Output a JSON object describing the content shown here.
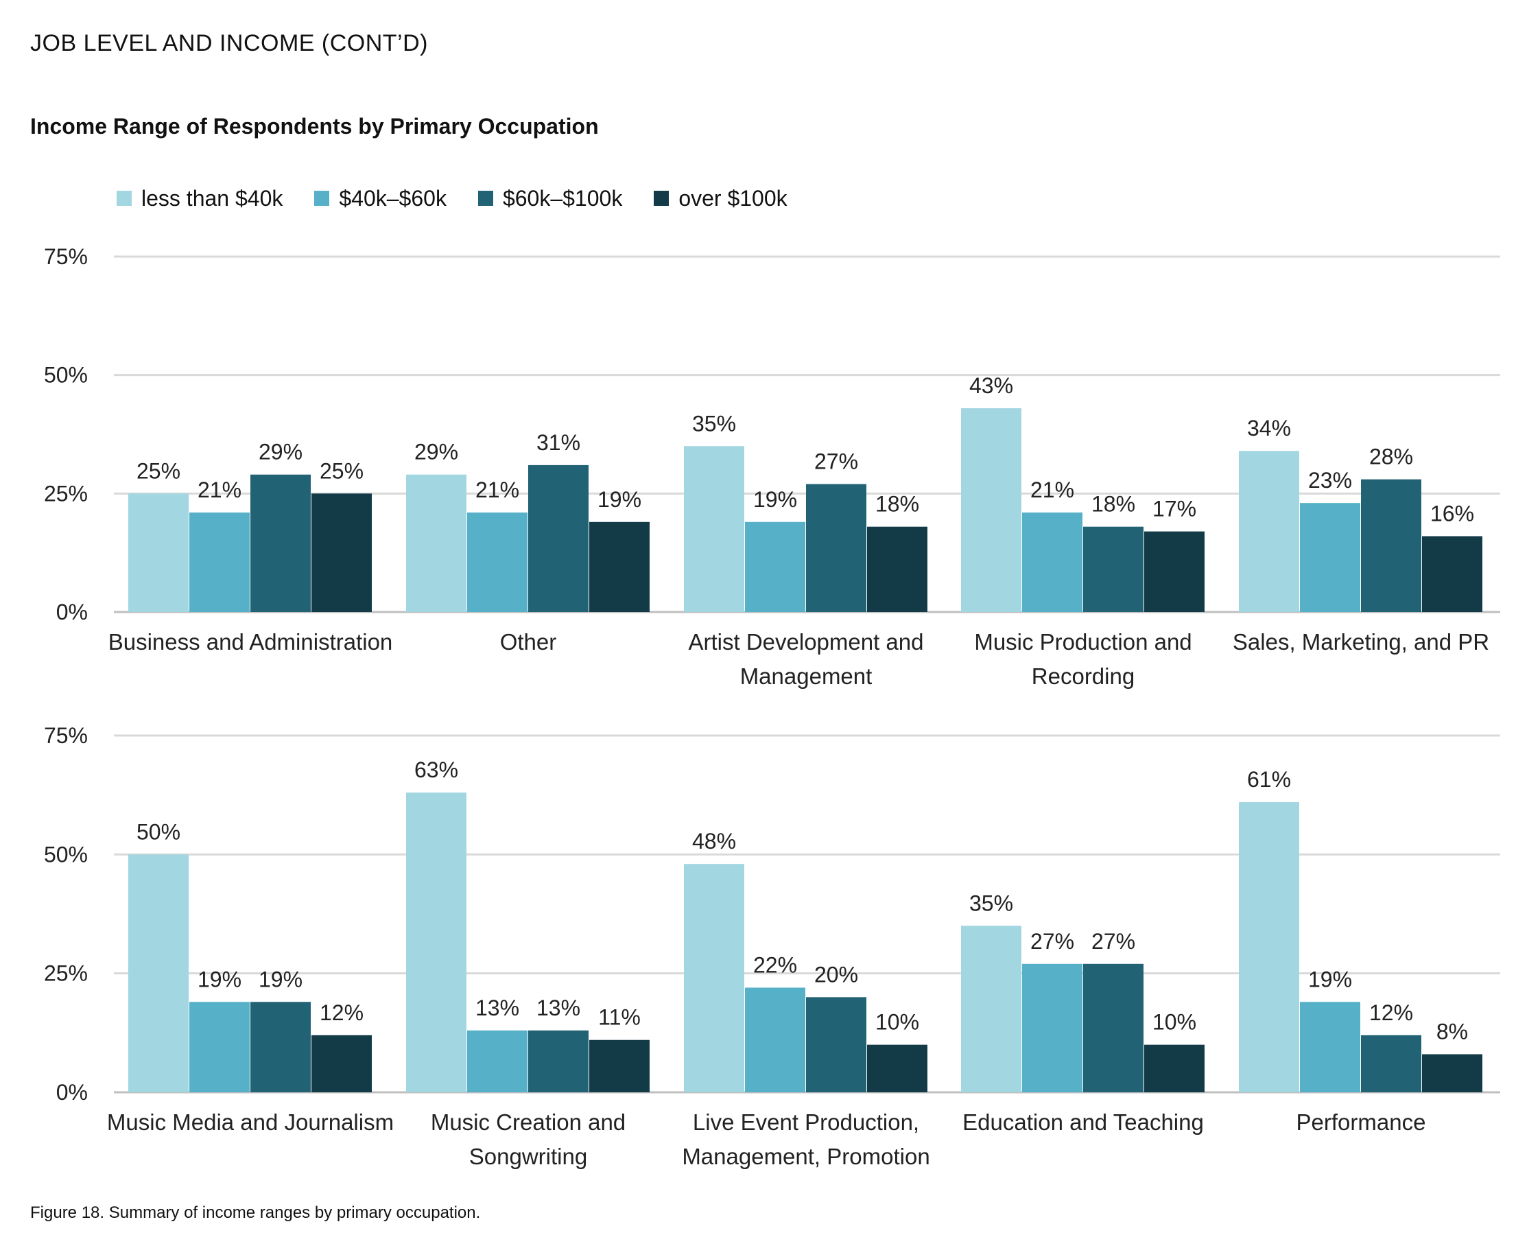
{
  "header": {
    "section_title": "JOB LEVEL AND INCOME (CONT’D)",
    "chart_title": "Income Range of Respondents by Primary Occupation",
    "caption": "Figure 18. Summary of income ranges by primary occupation."
  },
  "colors": {
    "less_than_40k": "#a2d6e1",
    "40k_60k": "#56b0c8",
    "60k_100k": "#226275",
    "over_100k": "#123a47",
    "gridline": "#d9d9d9",
    "axis": "#bfbfbf"
  },
  "chart_data": {
    "type": "bar",
    "title": "Income Range of Respondents by Primary Occupation",
    "ylim": [
      0,
      75
    ],
    "yticks": [
      "0%",
      "25%",
      "50%",
      "75%"
    ],
    "grid": true,
    "legend_position": "top-left",
    "legend": [
      "less than $40k",
      "$40k–$60k",
      "$60k–$100k",
      "over $100k"
    ],
    "panels": [
      {
        "categories": [
          [
            "Business and Administration"
          ],
          [
            "Other"
          ],
          [
            "Artist Development and",
            "Management"
          ],
          [
            "Music Production and",
            "Recording"
          ],
          [
            "Sales, Marketing, and PR"
          ]
        ],
        "series": [
          {
            "name": "less than $40k",
            "values": [
              25,
              29,
              35,
              43,
              34
            ],
            "labels": [
              "25%",
              "29%",
              "35%",
              "43%",
              "34%"
            ]
          },
          {
            "name": "$40k–$60k",
            "values": [
              21,
              21,
              19,
              21,
              23
            ],
            "labels": [
              "21%",
              "21%",
              "19%",
              "21%",
              "23%"
            ]
          },
          {
            "name": "$60k–$100k",
            "values": [
              29,
              31,
              27,
              18,
              28
            ],
            "labels": [
              "29%",
              "31%",
              "27%",
              "18%",
              "28%"
            ]
          },
          {
            "name": "over $100k",
            "values": [
              25,
              19,
              18,
              17,
              16
            ],
            "labels": [
              "25%",
              "19%",
              "18%",
              "17%",
              "16%"
            ]
          }
        ]
      },
      {
        "categories": [
          [
            "Music Media and Journalism"
          ],
          [
            "Music Creation and",
            "Songwriting"
          ],
          [
            "Live Event Production,",
            "Management, Promotion"
          ],
          [
            "Education and Teaching"
          ],
          [
            "Performance"
          ]
        ],
        "series": [
          {
            "name": "less than $40k",
            "values": [
              50,
              63,
              48,
              35,
              61
            ],
            "labels": [
              "50%",
              "63%",
              "48%",
              "35%",
              "61%"
            ]
          },
          {
            "name": "$40k–$60k",
            "values": [
              19,
              13,
              22,
              27,
              19
            ],
            "labels": [
              "19%",
              "13%",
              "22%",
              "27%",
              "19%"
            ]
          },
          {
            "name": "$60k–$100k",
            "values": [
              19,
              13,
              20,
              27,
              12
            ],
            "labels": [
              "19%",
              "13%",
              "20%",
              "27%",
              "12%"
            ]
          },
          {
            "name": "over $100k",
            "values": [
              12,
              11,
              10,
              10,
              8
            ],
            "labels": [
              "12%",
              "11%",
              "10%",
              "10%",
              "8%"
            ]
          }
        ]
      }
    ]
  }
}
